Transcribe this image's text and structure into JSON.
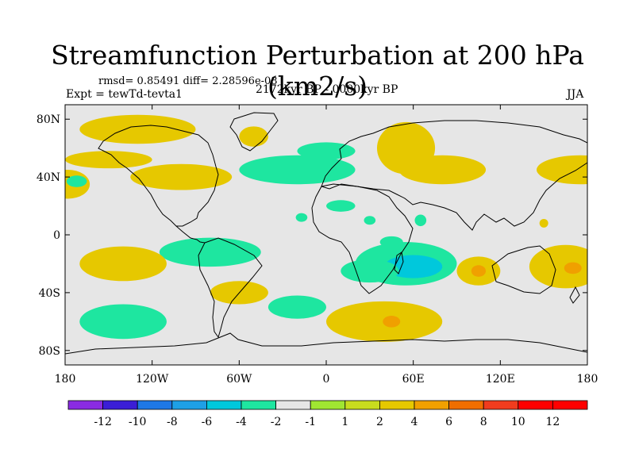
{
  "title": "Streamfunction Perturbation at 200 hPa (km2/s)",
  "stats": "rmsd= 0.85491 diff= 2.28596e-08",
  "experiment": "Expt = tewTd-tevta1",
  "period": "2172kyr BP - 0000kyr BP",
  "season": "JJA",
  "colors": {
    "ocean_bg": "#e6e6e6",
    "coast": "#000000",
    "levels": [
      "#8a2be2",
      "#3b1ed6",
      "#1e78e6",
      "#1ea0e6",
      "#00c8dc",
      "#1ee6a0",
      "#e6e6e6",
      "#a0e632",
      "#c8dc1e",
      "#e6c800",
      "#f0a000",
      "#f06e00",
      "#f03c1e",
      "#ff0000"
    ]
  },
  "chart_data": {
    "type": "heatmap",
    "title": "Streamfunction Perturbation at 200 hPa (km2/s)",
    "subtitle": "2172kyr BP - 0000kyr BP",
    "xlabel": "",
    "ylabel": "",
    "xlim": [
      -180,
      180
    ],
    "ylim": [
      -90,
      90
    ],
    "x_ticks": [
      {
        "value": -180,
        "label": "180"
      },
      {
        "value": -120,
        "label": "120W"
      },
      {
        "value": -60,
        "label": "60W"
      },
      {
        "value": 0,
        "label": "0"
      },
      {
        "value": 60,
        "label": "60E"
      },
      {
        "value": 120,
        "label": "120E"
      },
      {
        "value": 180,
        "label": "180"
      }
    ],
    "y_ticks": [
      {
        "value": 80,
        "label": "80N"
      },
      {
        "value": 40,
        "label": "40N"
      },
      {
        "value": 0,
        "label": "0"
      },
      {
        "value": -40,
        "label": "40S"
      },
      {
        "value": -80,
        "label": "80S"
      }
    ],
    "colorbar": {
      "labels": [
        "-12",
        "-10",
        "-8",
        "-6",
        "-4",
        "-2",
        "-1",
        "1",
        "2",
        "4",
        "6",
        "8",
        "10",
        "12"
      ]
    },
    "regions": [
      {
        "level": 2,
        "lon": -130,
        "lat": 73,
        "rx": 40,
        "ry": 10
      },
      {
        "level": 2,
        "lon": -50,
        "lat": 68,
        "rx": 10,
        "ry": 7
      },
      {
        "level": 2,
        "lon": -150,
        "lat": 52,
        "rx": 30,
        "ry": 6
      },
      {
        "level": 2,
        "lon": -178,
        "lat": 35,
        "rx": 15,
        "ry": 10
      },
      {
        "level": -2,
        "lon": -172,
        "lat": 37,
        "rx": 7,
        "ry": 4
      },
      {
        "level": 2,
        "lon": -100,
        "lat": 40,
        "rx": 35,
        "ry": 9
      },
      {
        "level": -2,
        "lon": -20,
        "lat": 45,
        "rx": 40,
        "ry": 10
      },
      {
        "level": -2,
        "lon": 0,
        "lat": 58,
        "rx": 20,
        "ry": 6
      },
      {
        "level": 2,
        "lon": 55,
        "lat": 60,
        "rx": 20,
        "ry": 18
      },
      {
        "level": 2,
        "lon": 80,
        "lat": 45,
        "rx": 30,
        "ry": 10
      },
      {
        "level": 2,
        "lon": 175,
        "lat": 45,
        "rx": 30,
        "ry": 10
      },
      {
        "level": -2,
        "lon": 10,
        "lat": 20,
        "rx": 10,
        "ry": 4
      },
      {
        "level": -2,
        "lon": -17,
        "lat": 12,
        "rx": 4,
        "ry": 3
      },
      {
        "level": -2,
        "lon": 65,
        "lat": 10,
        "rx": 4,
        "ry": 4
      },
      {
        "level": -2,
        "lon": 30,
        "lat": 10,
        "rx": 4,
        "ry": 3
      },
      {
        "level": 2,
        "lon": 150,
        "lat": 8,
        "rx": 3,
        "ry": 3
      },
      {
        "level": -2,
        "lon": -80,
        "lat": -12,
        "rx": 35,
        "ry": 10
      },
      {
        "level": 2,
        "lon": -140,
        "lat": -20,
        "rx": 30,
        "ry": 12
      },
      {
        "level": -2,
        "lon": 55,
        "lat": -20,
        "rx": 35,
        "ry": 15
      },
      {
        "level": -4,
        "lon": 60,
        "lat": -22,
        "rx": 20,
        "ry": 8
      },
      {
        "level": -2,
        "lon": 30,
        "lat": -25,
        "rx": 20,
        "ry": 8
      },
      {
        "level": -2,
        "lon": 45,
        "lat": -5,
        "rx": 8,
        "ry": 4
      },
      {
        "level": 2,
        "lon": 105,
        "lat": -25,
        "rx": 15,
        "ry": 10
      },
      {
        "level": 4,
        "lon": 105,
        "lat": -25,
        "rx": 5,
        "ry": 4
      },
      {
        "level": 2,
        "lon": 165,
        "lat": -22,
        "rx": 25,
        "ry": 15
      },
      {
        "level": 4,
        "lon": 170,
        "lat": -23,
        "rx": 6,
        "ry": 4
      },
      {
        "level": 2,
        "lon": -60,
        "lat": -40,
        "rx": 20,
        "ry": 8
      },
      {
        "level": -2,
        "lon": -20,
        "lat": -50,
        "rx": 20,
        "ry": 8
      },
      {
        "level": -2,
        "lon": -140,
        "lat": -60,
        "rx": 30,
        "ry": 12
      },
      {
        "level": 2,
        "lon": 40,
        "lat": -60,
        "rx": 40,
        "ry": 14
      },
      {
        "level": 4,
        "lon": 45,
        "lat": -60,
        "rx": 6,
        "ry": 4
      }
    ]
  }
}
